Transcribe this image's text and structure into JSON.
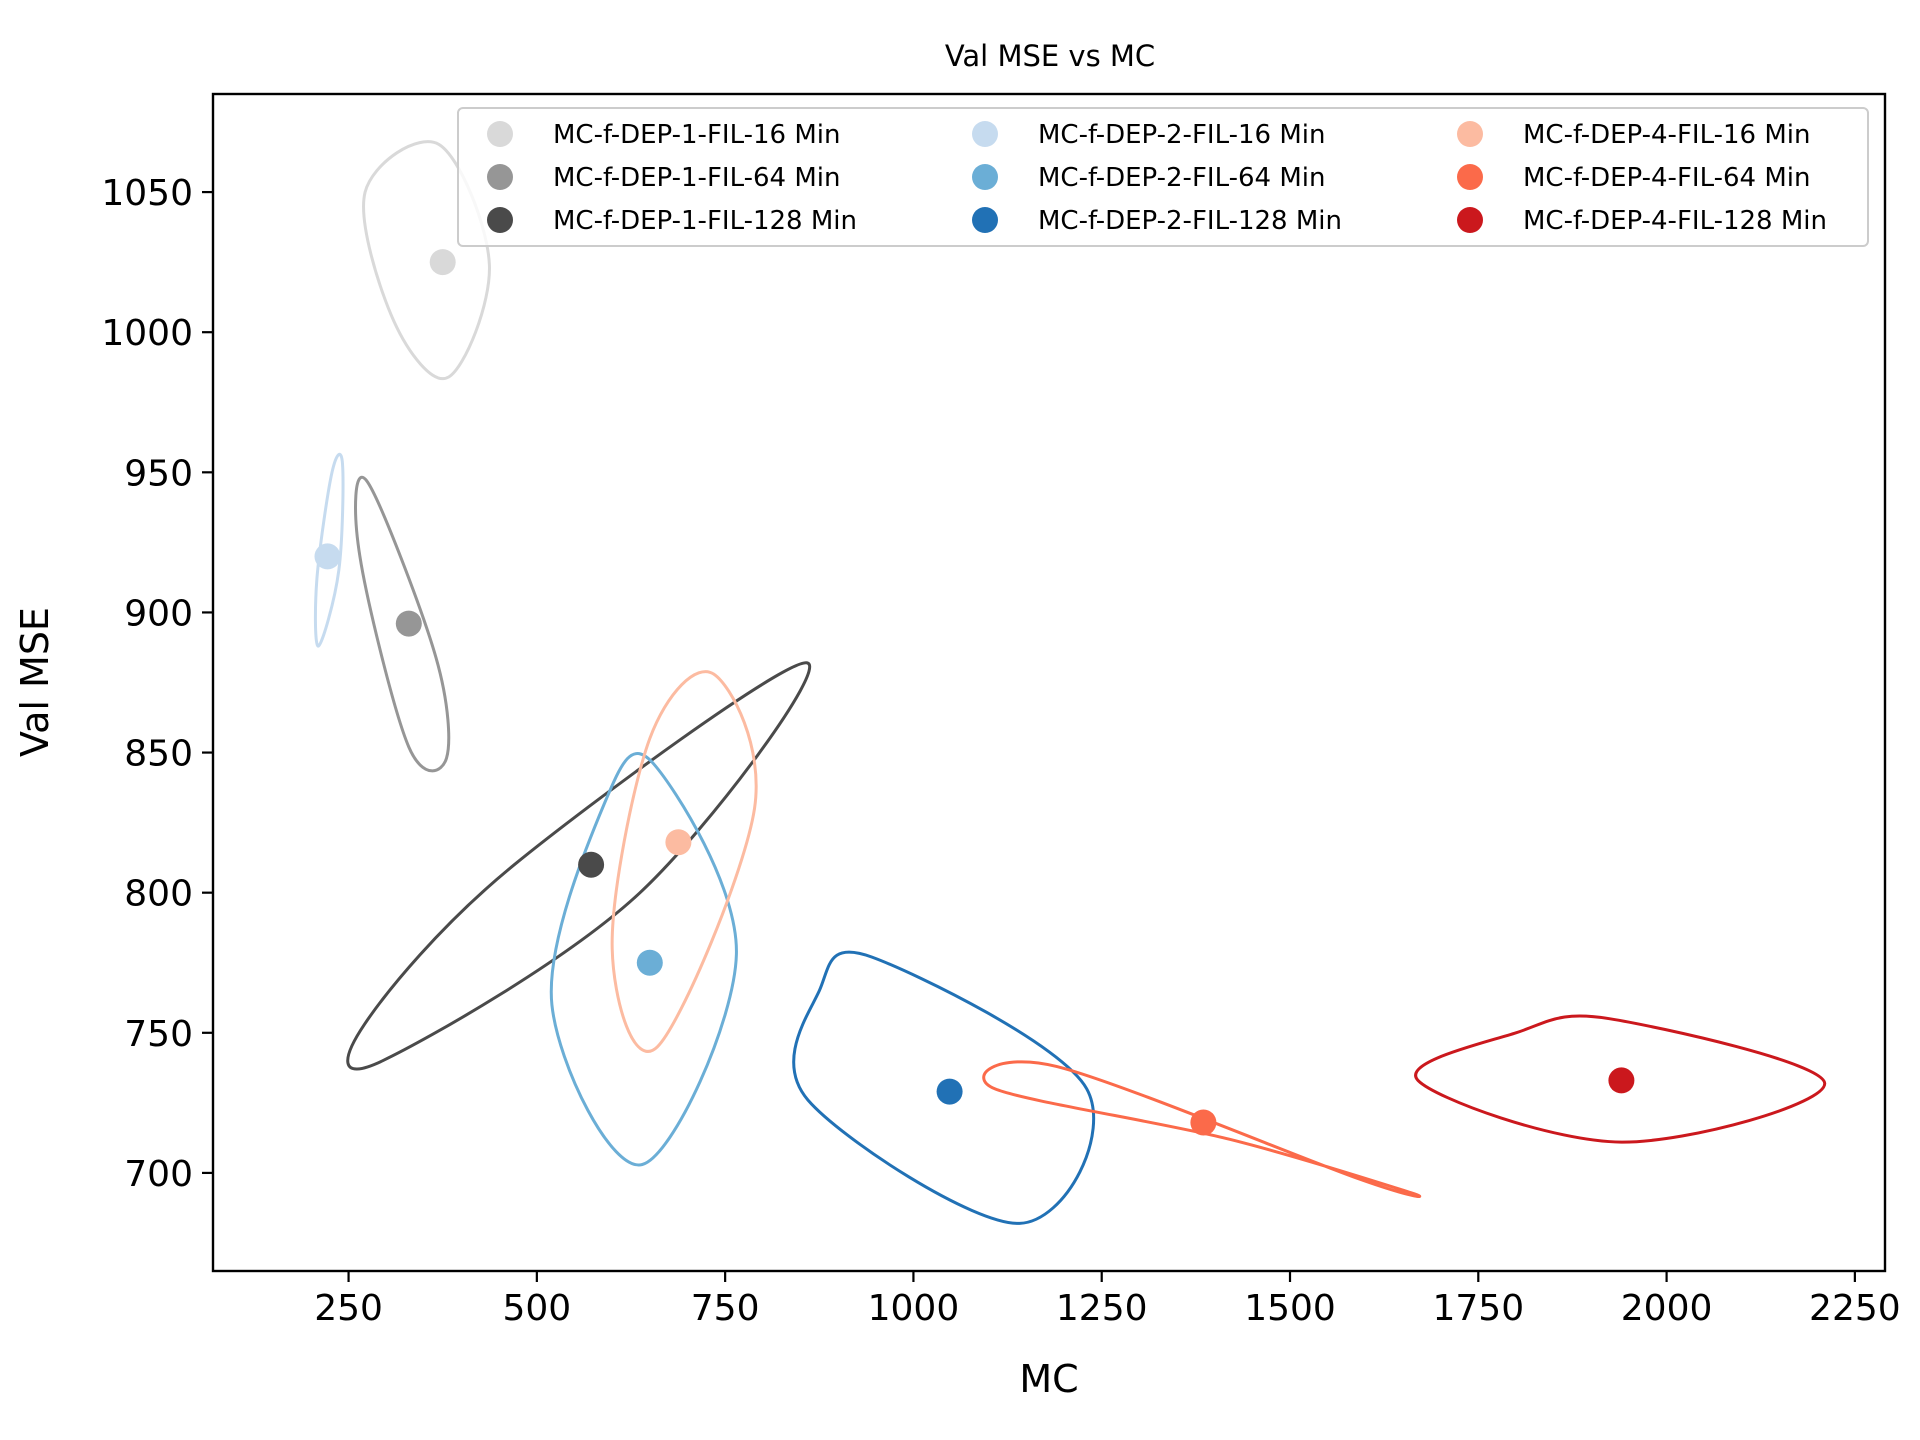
{
  "chart_data": {
    "type": "scatter",
    "title": "Val MSE vs MC",
    "xlabel": "MC",
    "ylabel": "Val MSE",
    "xlim": [
      70,
      2290
    ],
    "ylim": [
      665,
      1085
    ],
    "xticks": [
      250,
      500,
      750,
      1000,
      1250,
      1500,
      1750,
      2000,
      2250
    ],
    "yticks": [
      700,
      750,
      800,
      850,
      900,
      950,
      1000,
      1050
    ],
    "grid": false,
    "legend_position": "upper-right",
    "legend_columns": 3,
    "series": [
      {
        "name": "MC-f-DEP-1-FIL-16 Min",
        "color": "#d9d9d9",
        "x": 375,
        "y": 1025,
        "ellipse": [
          [
            370,
            1067
          ],
          [
            437,
            1024
          ],
          [
            383,
            984
          ],
          [
            310,
            1004
          ],
          [
            272,
            1050
          ]
        ]
      },
      {
        "name": "MC-f-DEP-1-FIL-64 Min",
        "color": "#969696",
        "x": 330,
        "y": 896,
        "ellipse": [
          [
            274,
            947
          ],
          [
            366,
            884
          ],
          [
            380,
            848
          ],
          [
            330,
            852
          ],
          [
            265,
            920
          ]
        ]
      },
      {
        "name": "MC-f-DEP-1-FIL-128 Min",
        "color": "#4a4a4a",
        "x": 572,
        "y": 810,
        "ellipse": [
          [
            859,
            882
          ],
          [
            637,
            800
          ],
          [
            295,
            740
          ],
          [
            271,
            753
          ],
          [
            470,
            810
          ]
        ]
      },
      {
        "name": "MC-f-DEP-2-FIL-16 Min",
        "color": "#c6dbef",
        "x": 222,
        "y": 920,
        "ellipse": [
          [
            242,
            953
          ],
          [
            237,
            915
          ],
          [
            210,
            888
          ],
          [
            208,
            912
          ],
          [
            228,
            950
          ]
        ]
      },
      {
        "name": "MC-f-DEP-2-FIL-64 Min",
        "color": "#6baed6",
        "x": 650,
        "y": 775,
        "ellipse": [
          [
            655,
            846
          ],
          [
            765,
            778
          ],
          [
            640,
            703
          ],
          [
            520,
            760
          ],
          [
            590,
            832
          ]
        ]
      },
      {
        "name": "MC-f-DEP-2-FIL-128 Min",
        "color": "#2171b5",
        "x": 1048,
        "y": 729,
        "ellipse": [
          [
            945,
            777
          ],
          [
            1230,
            730
          ],
          [
            1141,
            682
          ],
          [
            860,
            726
          ],
          [
            875,
            765
          ]
        ]
      },
      {
        "name": "MC-f-DEP-4-FIL-16 Min",
        "color": "#fcbba1",
        "x": 688,
        "y": 818,
        "ellipse": [
          [
            735,
            878
          ],
          [
            789,
            830
          ],
          [
            660,
            745
          ],
          [
            600,
            780
          ],
          [
            650,
            855
          ]
        ]
      },
      {
        "name": "MC-f-DEP-4-FIL-64 Min",
        "color": "#fb6a4a",
        "x": 1385,
        "y": 718,
        "ellipse": [
          [
            1190,
            738
          ],
          [
            1590,
            698
          ],
          [
            1660,
            693
          ],
          [
            1420,
            712
          ],
          [
            1108,
            730
          ]
        ]
      },
      {
        "name": "MC-f-DEP-4-FIL-128 Min",
        "color": "#cb181d",
        "x": 1940,
        "y": 733,
        "ellipse": [
          [
            1925,
            755
          ],
          [
            2210,
            732
          ],
          [
            1940,
            711
          ],
          [
            1670,
            733
          ],
          [
            1800,
            750
          ]
        ]
      }
    ]
  }
}
